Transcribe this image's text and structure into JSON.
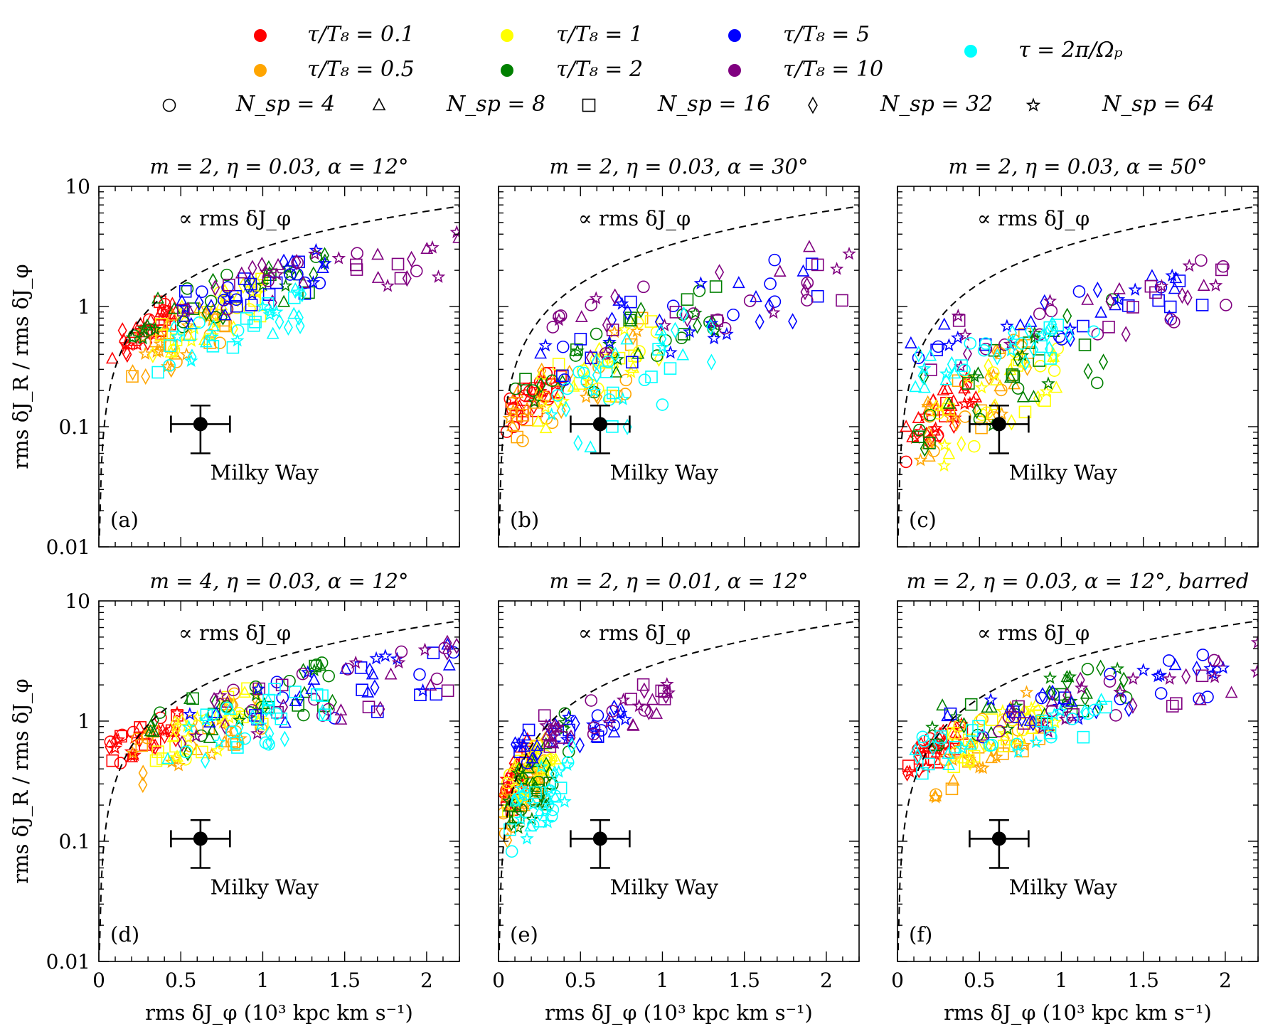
{
  "legend": {
    "colors": [
      {
        "label": "τ/T₈ = 0.1",
        "color": "#ff0000"
      },
      {
        "label": "τ/T₈ = 0.5",
        "color": "#ffa500"
      },
      {
        "label": "τ/T₈ = 1",
        "color": "#ffff00"
      },
      {
        "label": "τ/T₈ = 2",
        "color": "#008000"
      },
      {
        "label": "τ/T₈ = 5",
        "color": "#0000ff"
      },
      {
        "label": "τ/T₈ = 10",
        "color": "#800080"
      },
      {
        "label": "τ = 2π/Ωₚ",
        "color": "#00ffff"
      }
    ],
    "markers": [
      {
        "label": "N_sp = 4",
        "symbol": "circle"
      },
      {
        "label": "N_sp = 8",
        "symbol": "triangle"
      },
      {
        "label": "N_sp = 16",
        "symbol": "square"
      },
      {
        "label": "N_sp = 32",
        "symbol": "diamond"
      },
      {
        "label": "N_sp = 64",
        "symbol": "star"
      }
    ]
  },
  "common": {
    "ylabel": "rms δJ_R / rms δJ_φ",
    "xlabel": "rms δJ_φ (10³ kpc km s⁻¹)",
    "dashed_label": "∝ rms δJ_φ",
    "mw_label": "Milky Way",
    "x_ticks": [
      "0",
      "0.5",
      "1",
      "1.5",
      "2"
    ],
    "y_ticks": [
      "0.01",
      "0.1",
      "1",
      "10"
    ]
  },
  "chart_data": [
    {
      "type": "scatter",
      "panel": "(a)",
      "title": "m = 2, η = 0.03, α = 12°",
      "xlim": [
        0,
        2.2
      ],
      "ylim": [
        0.01,
        10
      ],
      "yscale": "log",
      "milky_way": {
        "x": 0.62,
        "y": 0.105,
        "xerr": [
          0.44,
          0.8
        ],
        "yerr": [
          0.06,
          0.15
        ]
      },
      "dashed_line": "y ∝ x",
      "clusters": [
        {
          "color": "#ff0000",
          "xr": [
            0.08,
            0.45
          ],
          "yr": [
            0.3,
            1.2
          ]
        },
        {
          "color": "#ffa500",
          "xr": [
            0.2,
            0.9
          ],
          "yr": [
            0.2,
            1.6
          ]
        },
        {
          "color": "#ffff00",
          "xr": [
            0.3,
            1.0
          ],
          "yr": [
            0.3,
            1.9
          ]
        },
        {
          "color": "#008000",
          "xr": [
            0.2,
            1.4
          ],
          "yr": [
            0.5,
            3.0
          ]
        },
        {
          "color": "#0000ff",
          "xr": [
            0.5,
            1.4
          ],
          "yr": [
            0.6,
            3.0
          ]
        },
        {
          "color": "#800080",
          "xr": [
            0.5,
            2.2
          ],
          "yr": [
            0.7,
            4.2
          ]
        },
        {
          "color": "#00ffff",
          "xr": [
            0.35,
            1.3
          ],
          "yr": [
            0.28,
            1.5
          ]
        }
      ]
    },
    {
      "type": "scatter",
      "panel": "(b)",
      "title": "m = 2, η = 0.03, α = 30°",
      "xlim": [
        0,
        2.2
      ],
      "ylim": [
        0.01,
        10
      ],
      "yscale": "log",
      "milky_way": {
        "x": 0.62,
        "y": 0.105,
        "xerr": [
          0.44,
          0.8
        ],
        "yerr": [
          0.06,
          0.15
        ]
      },
      "dashed_line": "y ∝ x",
      "clusters": [
        {
          "color": "#ff0000",
          "xr": [
            0.05,
            0.4
          ],
          "yr": [
            0.09,
            0.35
          ]
        },
        {
          "color": "#ffa500",
          "xr": [
            0.05,
            0.9
          ],
          "yr": [
            0.05,
            0.8
          ]
        },
        {
          "color": "#ffff00",
          "xr": [
            0.2,
            1.0
          ],
          "yr": [
            0.08,
            0.9
          ]
        },
        {
          "color": "#008000",
          "xr": [
            0.1,
            1.4
          ],
          "yr": [
            0.1,
            1.6
          ]
        },
        {
          "color": "#0000ff",
          "xr": [
            0.25,
            2.0
          ],
          "yr": [
            0.2,
            3.0
          ]
        },
        {
          "color": "#800080",
          "xr": [
            0.3,
            2.2
          ],
          "yr": [
            0.3,
            3.5
          ]
        },
        {
          "color": "#00ffff",
          "xr": [
            0.3,
            1.3
          ],
          "yr": [
            0.04,
            1.2
          ]
        }
      ]
    },
    {
      "type": "scatter",
      "panel": "(c)",
      "title": "m = 2, η = 0.03, α = 50°",
      "xlim": [
        0,
        2.2
      ],
      "ylim": [
        0.01,
        10
      ],
      "yscale": "log",
      "milky_way": {
        "x": 0.62,
        "y": 0.105,
        "xerr": [
          0.44,
          0.8
        ],
        "yerr": [
          0.06,
          0.15
        ]
      },
      "dashed_line": "y ∝ x",
      "clusters": [
        {
          "color": "#ff0000",
          "xr": [
            0.05,
            0.5
          ],
          "yr": [
            0.05,
            0.3
          ]
        },
        {
          "color": "#ffa500",
          "xr": [
            0.1,
            0.8
          ],
          "yr": [
            0.04,
            0.6
          ]
        },
        {
          "color": "#ffff00",
          "xr": [
            0.2,
            1.0
          ],
          "yr": [
            0.04,
            0.7
          ]
        },
        {
          "color": "#008000",
          "xr": [
            0.1,
            1.4
          ],
          "yr": [
            0.05,
            1.2
          ]
        },
        {
          "color": "#0000ff",
          "xr": [
            0.05,
            1.9
          ],
          "yr": [
            0.3,
            2.0
          ]
        },
        {
          "color": "#800080",
          "xr": [
            0.2,
            2.2
          ],
          "yr": [
            0.25,
            3.2
          ]
        },
        {
          "color": "#00ffff",
          "xr": [
            0.1,
            1.2
          ],
          "yr": [
            0.2,
            0.8
          ]
        }
      ]
    },
    {
      "type": "scatter",
      "panel": "(d)",
      "title": "m = 4, η = 0.03, α = 12°",
      "xlim": [
        0,
        2.2
      ],
      "ylim": [
        0.01,
        10
      ],
      "yscale": "log",
      "milky_way": {
        "x": 0.62,
        "y": 0.105,
        "xerr": [
          0.44,
          0.8
        ],
        "yerr": [
          0.06,
          0.15
        ]
      },
      "dashed_line": "y ∝ x",
      "clusters": [
        {
          "color": "#ff0000",
          "xr": [
            0.05,
            0.5
          ],
          "yr": [
            0.4,
            1.2
          ]
        },
        {
          "color": "#ffa500",
          "xr": [
            0.2,
            1.0
          ],
          "yr": [
            0.25,
            2.0
          ]
        },
        {
          "color": "#ffff00",
          "xr": [
            0.3,
            1.0
          ],
          "yr": [
            0.3,
            2.0
          ]
        },
        {
          "color": "#008000",
          "xr": [
            0.2,
            1.5
          ],
          "yr": [
            0.35,
            3.5
          ]
        },
        {
          "color": "#0000ff",
          "xr": [
            0.5,
            2.2
          ],
          "yr": [
            0.5,
            4.5
          ]
        },
        {
          "color": "#800080",
          "xr": [
            0.5,
            2.2
          ],
          "yr": [
            0.5,
            4.5
          ]
        },
        {
          "color": "#00ffff",
          "xr": [
            0.4,
            1.4
          ],
          "yr": [
            0.3,
            2.5
          ]
        }
      ]
    },
    {
      "type": "scatter",
      "panel": "(e)",
      "title": "m = 2, η = 0.01, α = 12°",
      "xlim": [
        0,
        2.2
      ],
      "ylim": [
        0.01,
        10
      ],
      "yscale": "log",
      "milky_way": {
        "x": 0.62,
        "y": 0.105,
        "xerr": [
          0.44,
          0.8
        ],
        "yerr": [
          0.06,
          0.15
        ]
      },
      "dashed_line": "y ∝ x",
      "clusters": [
        {
          "color": "#ff0000",
          "xr": [
            0.02,
            0.2
          ],
          "yr": [
            0.12,
            0.8
          ]
        },
        {
          "color": "#ffa500",
          "xr": [
            0.03,
            0.3
          ],
          "yr": [
            0.08,
            0.8
          ]
        },
        {
          "color": "#ffff00",
          "xr": [
            0.05,
            0.35
          ],
          "yr": [
            0.15,
            0.9
          ]
        },
        {
          "color": "#008000",
          "xr": [
            0.05,
            0.45
          ],
          "yr": [
            0.08,
            1.2
          ]
        },
        {
          "color": "#0000ff",
          "xr": [
            0.1,
            0.8
          ],
          "yr": [
            0.4,
            1.6
          ]
        },
        {
          "color": "#800080",
          "xr": [
            0.2,
            1.05
          ],
          "yr": [
            0.5,
            2.2
          ]
        },
        {
          "color": "#00ffff",
          "xr": [
            0.05,
            0.45
          ],
          "yr": [
            0.06,
            0.7
          ]
        }
      ]
    },
    {
      "type": "scatter",
      "panel": "(f)",
      "title": "m = 2, η = 0.03, α = 12°, barred",
      "xlim": [
        0,
        2.2
      ],
      "ylim": [
        0.01,
        10
      ],
      "yscale": "log",
      "milky_way": {
        "x": 0.62,
        "y": 0.105,
        "xerr": [
          0.44,
          0.8
        ],
        "yerr": [
          0.06,
          0.15
        ]
      },
      "dashed_line": "y ∝ x",
      "clusters": [
        {
          "color": "#ff0000",
          "xr": [
            0.05,
            0.4
          ],
          "yr": [
            0.3,
            1.0
          ]
        },
        {
          "color": "#ffa500",
          "xr": [
            0.2,
            0.9
          ],
          "yr": [
            0.2,
            2.0
          ]
        },
        {
          "color": "#ffff00",
          "xr": [
            0.3,
            1.0
          ],
          "yr": [
            0.35,
            2.0
          ]
        },
        {
          "color": "#008000",
          "xr": [
            0.2,
            1.4
          ],
          "yr": [
            0.6,
            3.0
          ]
        },
        {
          "color": "#0000ff",
          "xr": [
            0.3,
            2.0
          ],
          "yr": [
            0.6,
            3.8
          ]
        },
        {
          "color": "#800080",
          "xr": [
            0.5,
            2.2
          ],
          "yr": [
            0.6,
            4.5
          ]
        },
        {
          "color": "#00ffff",
          "xr": [
            0.1,
            1.3
          ],
          "yr": [
            0.35,
            1.5
          ]
        }
      ]
    }
  ]
}
